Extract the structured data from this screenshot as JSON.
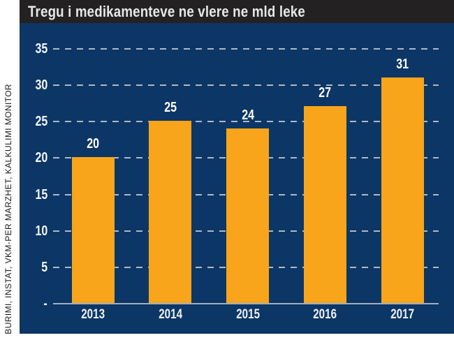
{
  "title_bar": {
    "title": "Tregu i medikamenteve ne vlere ne mld leke"
  },
  "source_note": "BURIMI, INSTAT, VKM-PER MARZHET, KALKULIMI MONITOR",
  "colors": {
    "background_navy": "#0C3665",
    "bar_orange": "#F8A51B",
    "title_bar_bg": "#242122",
    "gridline_gray": "#AEB9C6",
    "axis_line": "#9FAFBF",
    "label_white": "#FFFFFF",
    "source_strip_bg": "#FFFFFF"
  },
  "chart_data": {
    "type": "bar",
    "title": "Tregu i medikamenteve ne vlere ne mld leke",
    "categories": [
      "2013",
      "2014",
      "2015",
      "2016",
      "2017"
    ],
    "values": [
      20,
      25,
      24,
      27,
      31
    ],
    "value_labels": [
      "20",
      "25",
      "24",
      "27",
      "31"
    ],
    "xlabel": "",
    "ylabel": "",
    "ylim": [
      0,
      35
    ],
    "yticks": [
      5,
      10,
      15,
      20,
      25,
      30,
      35
    ],
    "zero_tick_label": "-",
    "grid": "dashed horizontal gridlines",
    "legend": "none",
    "bar_color": "#F8A51B"
  }
}
